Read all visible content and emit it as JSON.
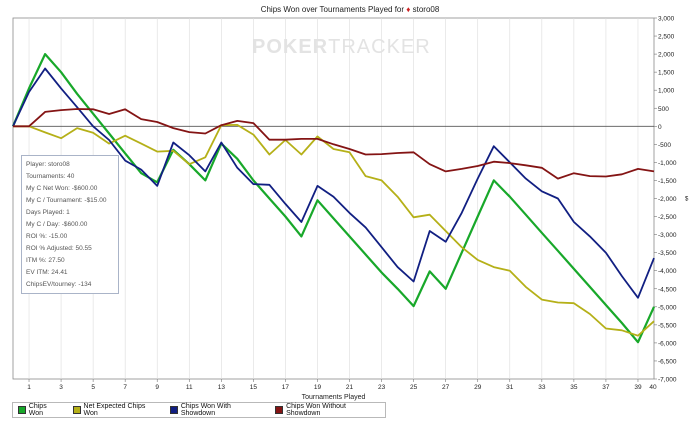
{
  "title": {
    "text": "Chips Won over Tournaments Played for",
    "suit": "♦",
    "player": "storo08"
  },
  "watermark": {
    "bold": "POKER",
    "light": "TRACKER"
  },
  "stats": [
    "Player: storo08",
    "Tournaments: 40",
    "My C Net Won: -$600.00",
    "My C / Tournament: -$15.00",
    "Days Played: 1",
    "My C / Day: -$600.00",
    "ROI %: -15.00",
    "ROI % Adjusted: 50.55",
    "ITM %: 27.50",
    "EV ITM: 24.41",
    "ChipsEV/tourney: -134"
  ],
  "legend": [
    {
      "label": "Chips Won",
      "color": "#18a82a"
    },
    {
      "label": "Net Expected Chips Won",
      "color": "#b5b018"
    },
    {
      "label": "Chips Won With Showdown",
      "color": "#111f82"
    },
    {
      "label": "Chips Won Without Showdown",
      "color": "#841414"
    }
  ],
  "chart_data": {
    "type": "line",
    "title": "Chips Won over Tournaments Played for storo08",
    "xlabel": "Tournaments Played",
    "ylabel": "",
    "xlim": [
      0,
      40
    ],
    "ylim": [
      -7000,
      3000
    ],
    "x_ticks": [
      1,
      3,
      5,
      7,
      9,
      11,
      13,
      15,
      17,
      19,
      21,
      23,
      25,
      27,
      29,
      31,
      33,
      35,
      37,
      39
    ],
    "x_end_label": "40",
    "y_ticks": [
      3000,
      2500,
      2000,
      1500,
      1000,
      500,
      0,
      -500,
      -1000,
      -1500,
      -2000,
      -2500,
      -3000,
      -3500,
      -4000,
      -4500,
      -5000,
      -5500,
      -6000,
      -6500,
      -7000
    ],
    "y_axis_side": "right",
    "y_unit": "$",
    "grid": "vertical",
    "legend_position": "bottom-left",
    "series": [
      {
        "name": "Chips Won",
        "color": "#18a82a",
        "x": [
          0,
          1,
          2,
          3,
          4,
          5,
          6,
          7,
          8,
          9,
          10,
          11,
          12,
          13,
          14,
          15,
          16,
          17,
          18,
          19,
          20,
          21,
          22,
          23,
          24,
          25,
          26,
          27,
          28,
          29,
          30,
          31,
          32,
          33,
          34,
          35,
          36,
          37,
          38,
          39,
          40
        ],
        "values": [
          0,
          1050,
          2000,
          1500,
          900,
          350,
          -200,
          -750,
          -1300,
          -1550,
          -650,
          -1050,
          -1500,
          -480,
          -900,
          -1500,
          -2000,
          -2500,
          -3050,
          -2050,
          -2550,
          -3050,
          -3550,
          -4050,
          -4500,
          -4980,
          -4020,
          -4500,
          -3500,
          -2500,
          -1500,
          -1950,
          -2450,
          -2950,
          -3450,
          -3950,
          -4450,
          -4950,
          -5450,
          -5980,
          -5000
        ]
      },
      {
        "name": "Net Expected Chips Won",
        "color": "#b5b018",
        "x": [
          0,
          1,
          2,
          3,
          4,
          5,
          6,
          7,
          8,
          9,
          10,
          11,
          12,
          13,
          14,
          15,
          16,
          17,
          18,
          19,
          20,
          21,
          22,
          23,
          24,
          25,
          26,
          27,
          28,
          29,
          30,
          31,
          32,
          33,
          34,
          35,
          36,
          37,
          38,
          39,
          40
        ],
        "values": [
          0,
          0,
          -170,
          -330,
          -50,
          -180,
          -480,
          -260,
          -480,
          -700,
          -680,
          -1050,
          -860,
          30,
          40,
          -230,
          -780,
          -380,
          -780,
          -280,
          -630,
          -720,
          -1380,
          -1500,
          -1950,
          -2520,
          -2450,
          -2900,
          -3350,
          -3700,
          -3900,
          -4000,
          -4450,
          -4800,
          -4880,
          -4900,
          -5200,
          -5600,
          -5650,
          -5800,
          -5400
        ]
      },
      {
        "name": "Chips Won With Showdown",
        "color": "#111f82",
        "x": [
          0,
          1,
          2,
          3,
          4,
          5,
          6,
          7,
          8,
          9,
          10,
          11,
          12,
          13,
          14,
          15,
          16,
          17,
          18,
          19,
          20,
          21,
          22,
          23,
          24,
          25,
          26,
          27,
          28,
          29,
          30,
          31,
          32,
          33,
          34,
          35,
          36,
          37,
          38,
          39,
          40
        ],
        "values": [
          0,
          950,
          1600,
          1050,
          530,
          0,
          -380,
          -950,
          -1200,
          -1650,
          -450,
          -800,
          -1250,
          -450,
          -1150,
          -1600,
          -1620,
          -2150,
          -2650,
          -1650,
          -1950,
          -2400,
          -2800,
          -3350,
          -3900,
          -4300,
          -2900,
          -3200,
          -2400,
          -1450,
          -550,
          -1000,
          -1450,
          -1800,
          -2000,
          -2650,
          -3050,
          -3500,
          -4150,
          -4750,
          -3650
        ]
      },
      {
        "name": "Chips Won Without Showdown",
        "color": "#841414",
        "x": [
          0,
          1,
          2,
          3,
          4,
          5,
          6,
          7,
          8,
          9,
          10,
          11,
          12,
          13,
          14,
          15,
          16,
          17,
          18,
          19,
          20,
          21,
          22,
          23,
          24,
          25,
          26,
          27,
          28,
          29,
          30,
          31,
          32,
          33,
          34,
          35,
          36,
          37,
          38,
          39,
          40
        ],
        "values": [
          0,
          0,
          400,
          450,
          480,
          470,
          340,
          470,
          200,
          120,
          -50,
          -160,
          -200,
          30,
          150,
          90,
          -370,
          -370,
          -350,
          -350,
          -500,
          -630,
          -780,
          -770,
          -740,
          -720,
          -1050,
          -1250,
          -1180,
          -1100,
          -980,
          -1020,
          -1080,
          -1150,
          -1450,
          -1300,
          -1380,
          -1390,
          -1330,
          -1180,
          -1250
        ]
      }
    ]
  }
}
